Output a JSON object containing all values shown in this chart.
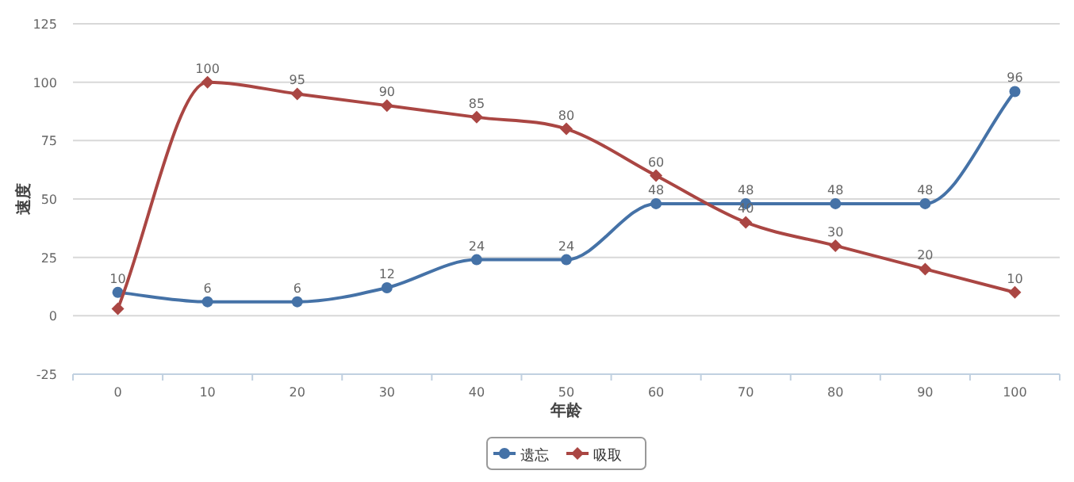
{
  "chart_data": {
    "type": "line",
    "xlabel": "年龄",
    "ylabel": "速度",
    "categories": [
      "0",
      "10",
      "20",
      "30",
      "40",
      "50",
      "60",
      "70",
      "80",
      "90",
      "100"
    ],
    "ylim": [
      -25,
      125
    ],
    "yticks": [
      -25,
      0,
      25,
      50,
      75,
      100,
      125
    ],
    "grid": "y",
    "legend": "bottom",
    "line_style": "solid",
    "series": [
      {
        "name": "遗忘",
        "color": "#4572a7",
        "marker": "circle",
        "values": [
          10,
          6,
          6,
          12,
          24,
          24,
          48,
          48,
          48,
          48,
          96
        ],
        "value_labels": [
          "10",
          "6",
          "6",
          "12",
          "24",
          "24",
          "48",
          "48",
          "48",
          "48",
          "96"
        ]
      },
      {
        "name": "吸取",
        "color": "#aa4643",
        "marker": "diamond",
        "values": [
          3,
          100,
          95,
          90,
          85,
          80,
          60,
          40,
          30,
          20,
          10
        ],
        "value_labels": [
          null,
          "100",
          "95",
          "90",
          "85",
          "80",
          "60",
          "40",
          "30",
          "20",
          "10"
        ]
      }
    ]
  }
}
